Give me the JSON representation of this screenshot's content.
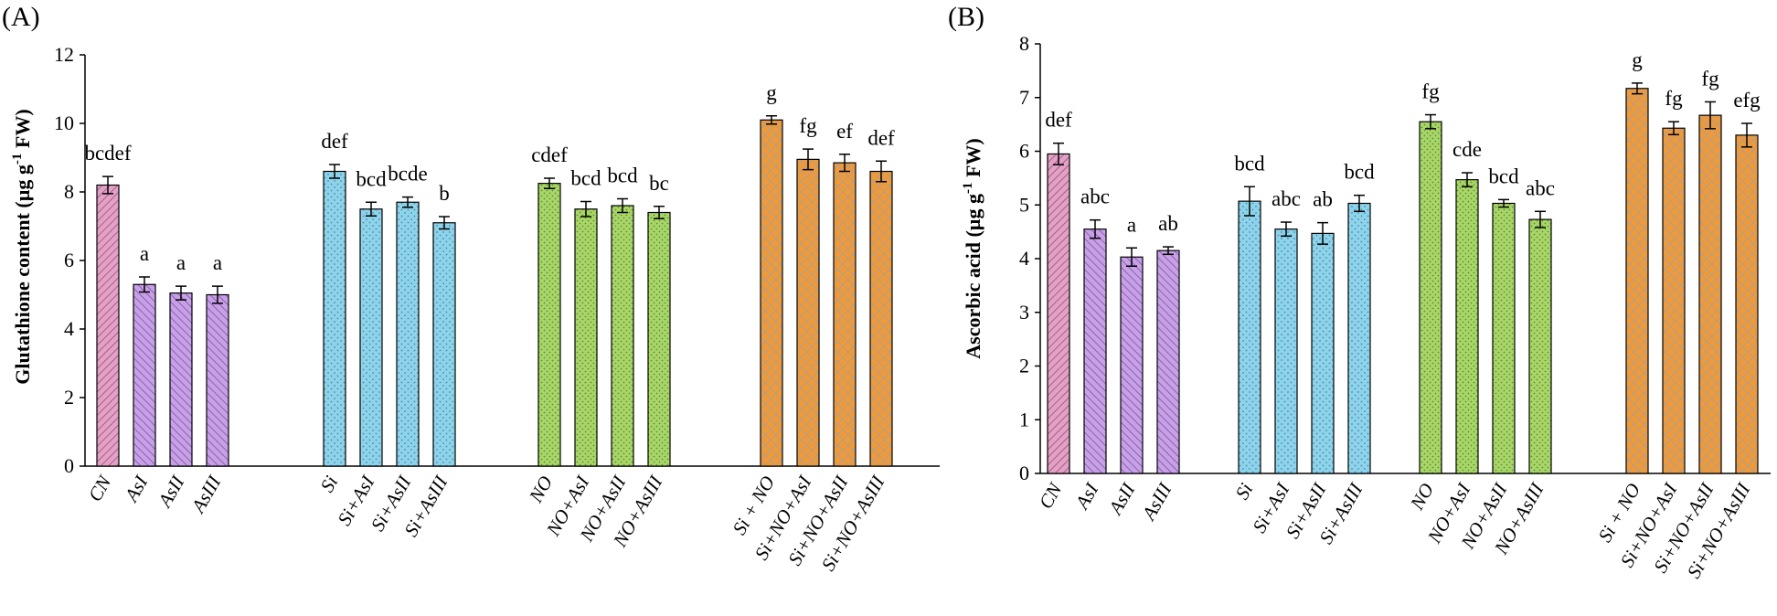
{
  "colors": {
    "pink": "#e3a1c6",
    "purple": "#c7a0e6",
    "blue": "#8fd3ea",
    "green": "#a9d66a",
    "orange": "#ef9a3a",
    "axis": "#000000"
  },
  "chart_data": [
    {
      "type": "bar",
      "panel_label": "(A)",
      "ylabel": "Glutathione content (µg g",
      "ylabel_sup": "-1",
      "ylabel_end": " FW)",
      "ylim": [
        0,
        12
      ],
      "yticks": [
        "0",
        "2",
        "4",
        "6",
        "8",
        "10",
        "12"
      ],
      "groups": [
        {
          "name": "control",
          "bars": [
            {
              "label": "CN",
              "value": 8.2,
              "err": 0.25,
              "sig": "bcdef",
              "color": "pink",
              "pattern": "hatch"
            },
            {
              "label": "AsI",
              "value": 5.3,
              "err": 0.22,
              "sig": "a",
              "color": "purple",
              "pattern": "hatch"
            },
            {
              "label": "AsII",
              "value": 5.05,
              "err": 0.2,
              "sig": "a",
              "color": "purple",
              "pattern": "hatch"
            },
            {
              "label": "AsIII",
              "value": 5.0,
              "err": 0.25,
              "sig": "a",
              "color": "purple",
              "pattern": "hatch"
            }
          ]
        },
        {
          "name": "silicon",
          "bars": [
            {
              "label": "Si",
              "value": 8.6,
              "err": 0.2,
              "sig": "def",
              "color": "blue",
              "pattern": "dots"
            },
            {
              "label": "Si+AsI",
              "value": 7.5,
              "err": 0.2,
              "sig": "bcd",
              "color": "blue",
              "pattern": "dots"
            },
            {
              "label": "Si+AsII",
              "value": 7.7,
              "err": 0.15,
              "sig": "bcde",
              "color": "blue",
              "pattern": "dots"
            },
            {
              "label": "Si+AsIII",
              "value": 7.1,
              "err": 0.18,
              "sig": "b",
              "color": "blue",
              "pattern": "dots"
            }
          ]
        },
        {
          "name": "nitric-oxide",
          "bars": [
            {
              "label": "NO",
              "value": 8.25,
              "err": 0.15,
              "sig": "cdef",
              "color": "green",
              "pattern": "dots"
            },
            {
              "label": "NO+AsI",
              "value": 7.5,
              "err": 0.22,
              "sig": "bcd",
              "color": "green",
              "pattern": "dots"
            },
            {
              "label": "NO+AsII",
              "value": 7.6,
              "err": 0.2,
              "sig": "bcd",
              "color": "green",
              "pattern": "dots"
            },
            {
              "label": "NO+AsIII",
              "value": 7.4,
              "err": 0.18,
              "sig": "bc",
              "color": "green",
              "pattern": "dots"
            }
          ]
        },
        {
          "name": "silicon-nitric-oxide",
          "bars": [
            {
              "label": "Si + NO",
              "value": 10.1,
              "err": 0.12,
              "sig": "g",
              "color": "orange",
              "pattern": "cross"
            },
            {
              "label": "Si+NO+AsI",
              "value": 8.95,
              "err": 0.3,
              "sig": "fg",
              "color": "orange",
              "pattern": "cross"
            },
            {
              "label": "Si+NO+AsII",
              "value": 8.85,
              "err": 0.25,
              "sig": "ef",
              "color": "orange",
              "pattern": "cross"
            },
            {
              "label": "Si+NO+AsIII",
              "value": 8.6,
              "err": 0.3,
              "sig": "def",
              "color": "orange",
              "pattern": "cross"
            }
          ]
        }
      ]
    },
    {
      "type": "bar",
      "panel_label": "(B)",
      "ylabel": "Ascorbic acid (µg g",
      "ylabel_sup": "-1",
      "ylabel_end": " FW)",
      "ylim": [
        0,
        8
      ],
      "yticks": [
        "0",
        "1",
        "2",
        "3",
        "4",
        "5",
        "6",
        "7",
        "8"
      ],
      "groups": [
        {
          "name": "control",
          "bars": [
            {
              "label": "CN",
              "value": 5.95,
              "err": 0.2,
              "sig": "def",
              "color": "pink",
              "pattern": "hatch"
            },
            {
              "label": "AsI",
              "value": 4.55,
              "err": 0.17,
              "sig": "abc",
              "color": "purple",
              "pattern": "hatch"
            },
            {
              "label": "AsII",
              "value": 4.03,
              "err": 0.17,
              "sig": "a",
              "color": "purple",
              "pattern": "hatch"
            },
            {
              "label": "AsIII",
              "value": 4.15,
              "err": 0.07,
              "sig": "ab",
              "color": "purple",
              "pattern": "hatch"
            }
          ]
        },
        {
          "name": "silicon",
          "bars": [
            {
              "label": "Si",
              "value": 5.07,
              "err": 0.27,
              "sig": "bcd",
              "color": "blue",
              "pattern": "dots"
            },
            {
              "label": "Si+AsI",
              "value": 4.55,
              "err": 0.13,
              "sig": "abc",
              "color": "blue",
              "pattern": "dots"
            },
            {
              "label": "Si+AsII",
              "value": 4.47,
              "err": 0.2,
              "sig": "ab",
              "color": "blue",
              "pattern": "dots"
            },
            {
              "label": "Si+AsIII",
              "value": 5.03,
              "err": 0.15,
              "sig": "bcd",
              "color": "blue",
              "pattern": "dots"
            }
          ]
        },
        {
          "name": "nitric-oxide",
          "bars": [
            {
              "label": "NO",
              "value": 6.55,
              "err": 0.13,
              "sig": "fg",
              "color": "green",
              "pattern": "dots"
            },
            {
              "label": "NO+AsI",
              "value": 5.47,
              "err": 0.13,
              "sig": "cde",
              "color": "green",
              "pattern": "dots"
            },
            {
              "label": "NO+AsII",
              "value": 5.03,
              "err": 0.07,
              "sig": "bcd",
              "color": "green",
              "pattern": "dots"
            },
            {
              "label": "NO+AsIII",
              "value": 4.73,
              "err": 0.15,
              "sig": "abc",
              "color": "green",
              "pattern": "dots"
            }
          ]
        },
        {
          "name": "silicon-nitric-oxide",
          "bars": [
            {
              "label": "Si + NO",
              "value": 7.17,
              "err": 0.1,
              "sig": "g",
              "color": "orange",
              "pattern": "cross"
            },
            {
              "label": "Si+NO+AsI",
              "value": 6.43,
              "err": 0.12,
              "sig": "fg",
              "color": "orange",
              "pattern": "cross"
            },
            {
              "label": "Si+NO+AsII",
              "value": 6.67,
              "err": 0.25,
              "sig": "fg",
              "color": "orange",
              "pattern": "cross"
            },
            {
              "label": "Si+NO+AsIII",
              "value": 6.3,
              "err": 0.22,
              "sig": "efg",
              "color": "orange",
              "pattern": "cross"
            }
          ]
        }
      ]
    }
  ]
}
